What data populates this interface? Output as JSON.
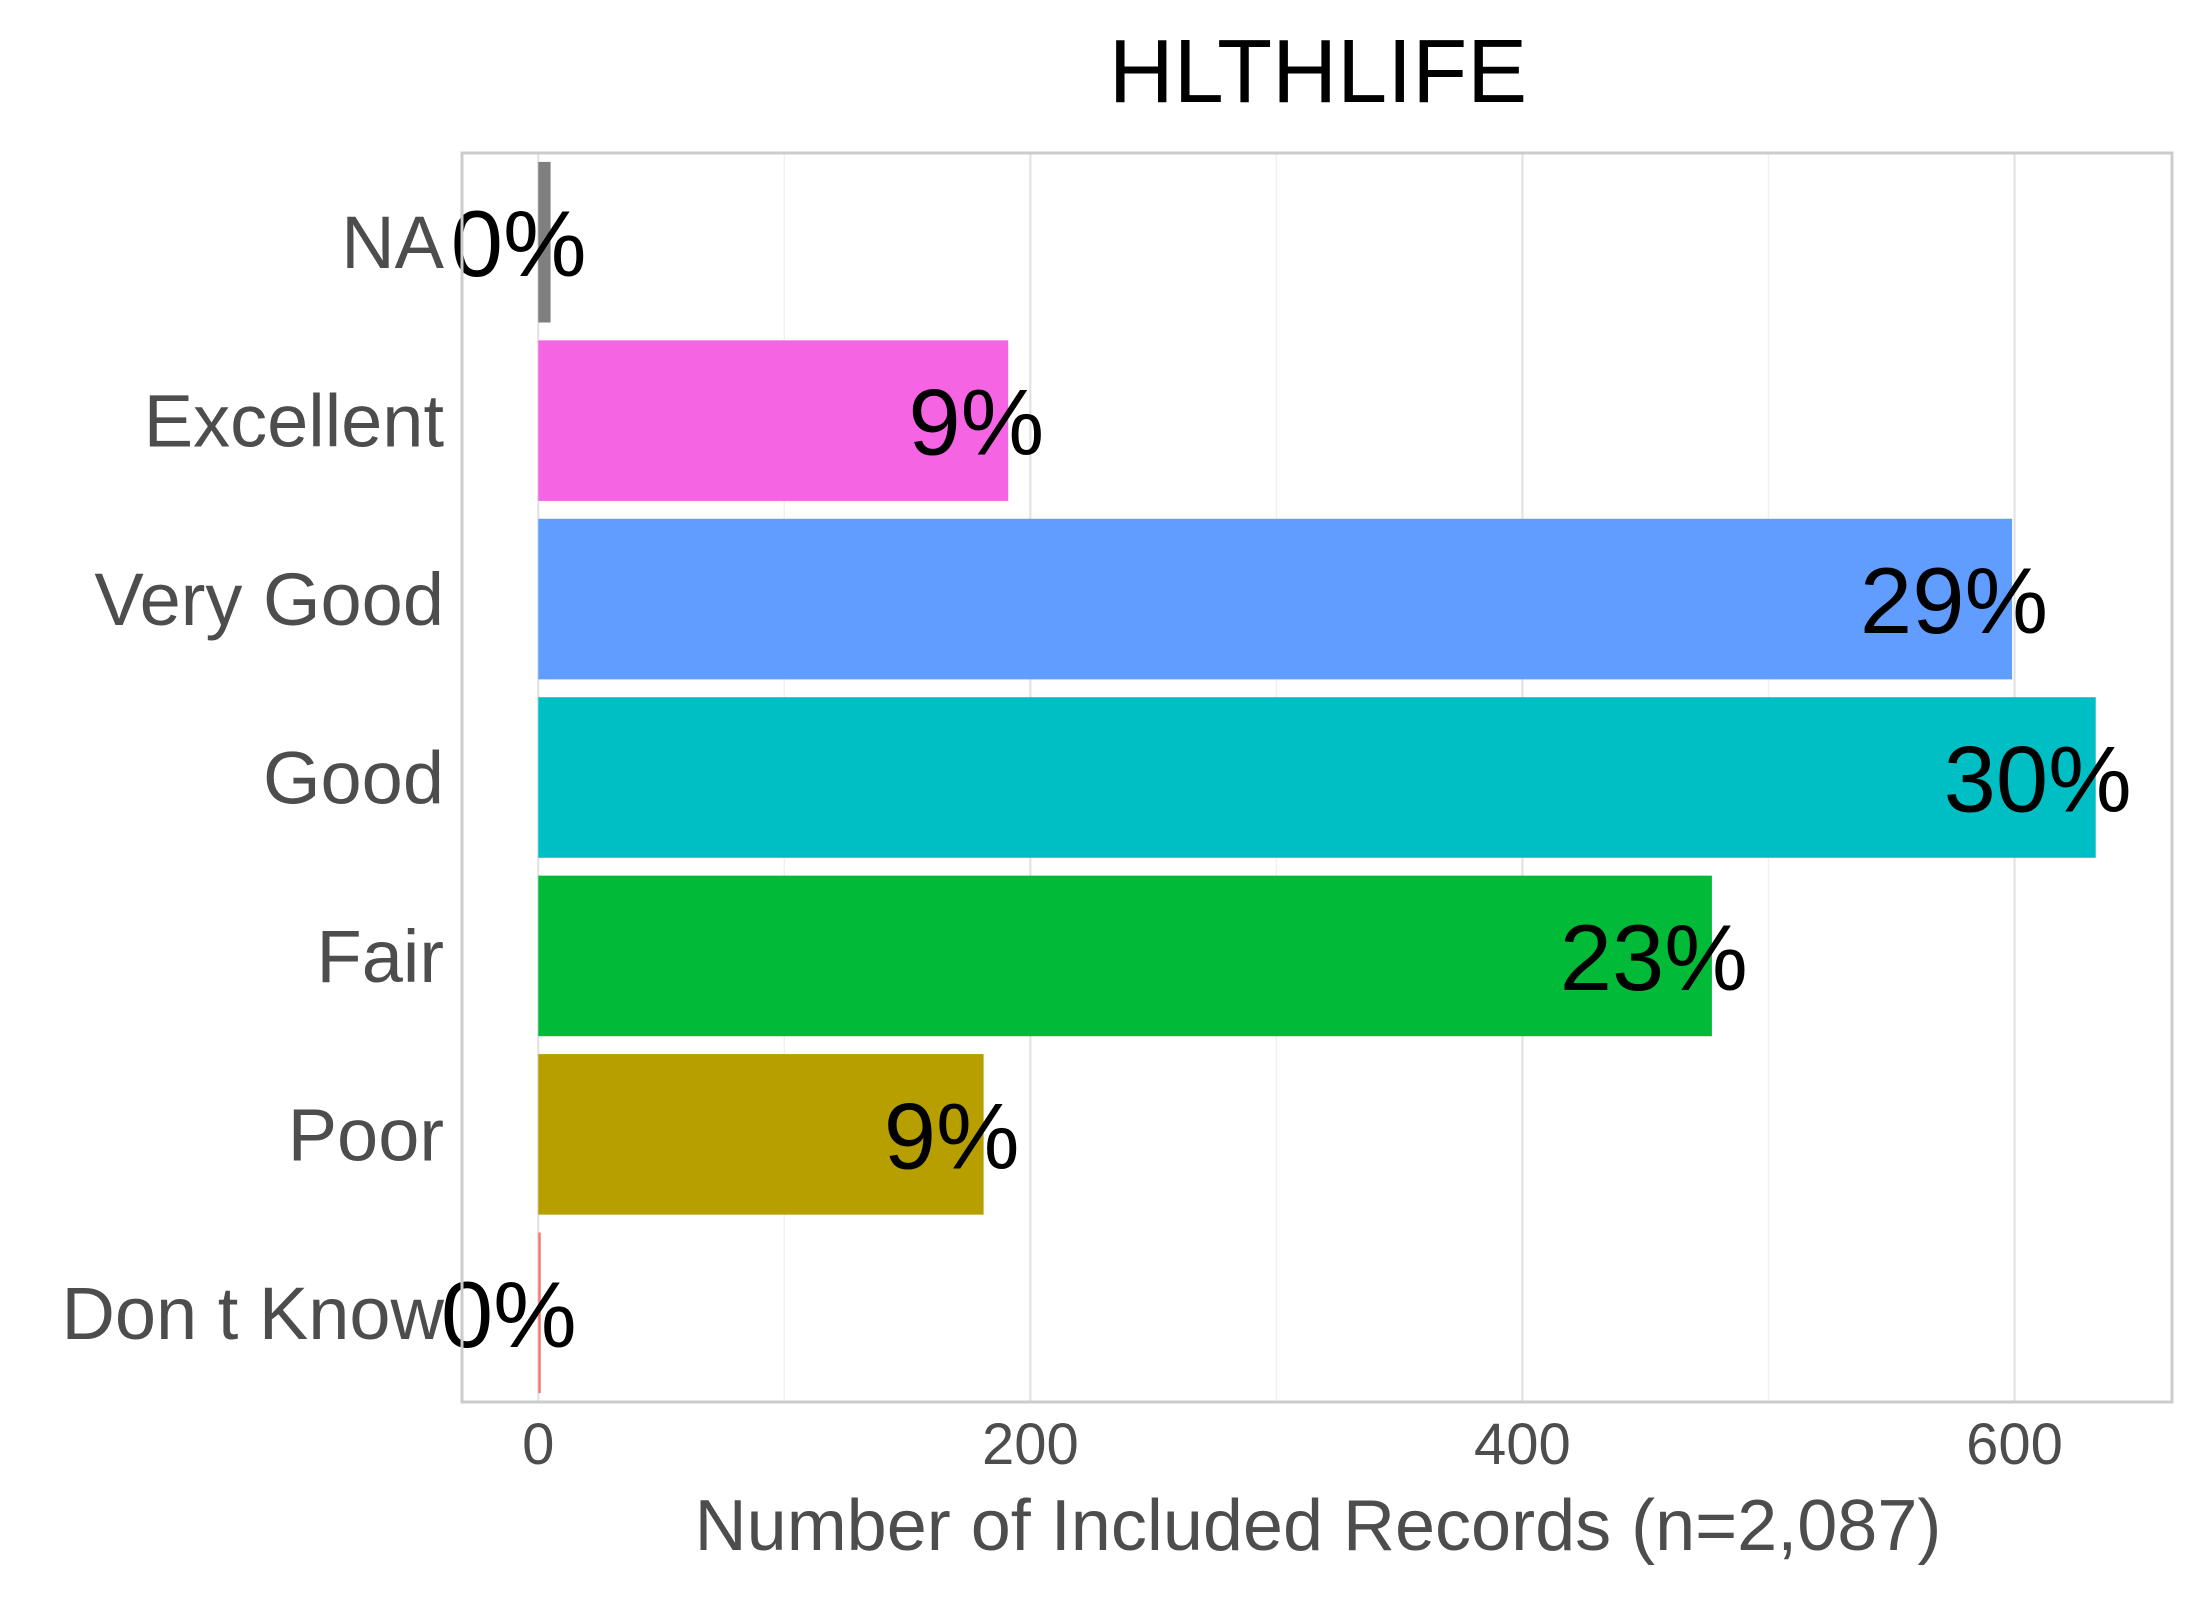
{
  "chart_data": {
    "type": "bar",
    "orientation": "horizontal",
    "title": "HLTHLIFE",
    "xlabel": "Number of Included Records (n=2,087)",
    "ylabel": "",
    "categories": [
      "NA",
      "Excellent",
      "Very Good",
      "Good",
      "Fair",
      "Poor",
      "Don t Know"
    ],
    "values": [
      5,
      191,
      599,
      633,
      477,
      181,
      1
    ],
    "labels": [
      "0%",
      "9%",
      "29%",
      "30%",
      "23%",
      "9%",
      "0%"
    ],
    "colors": [
      "#7f7f7f",
      "#f564e3",
      "#619cff",
      "#00bfc4",
      "#00ba38",
      "#b79f00",
      "#f8766d"
    ],
    "xlim": [
      -31,
      664
    ],
    "xticks": [
      "0",
      "200",
      "400",
      "600"
    ],
    "xtick_values": [
      0,
      200,
      400,
      600
    ],
    "grid": true,
    "legend": "none"
  }
}
